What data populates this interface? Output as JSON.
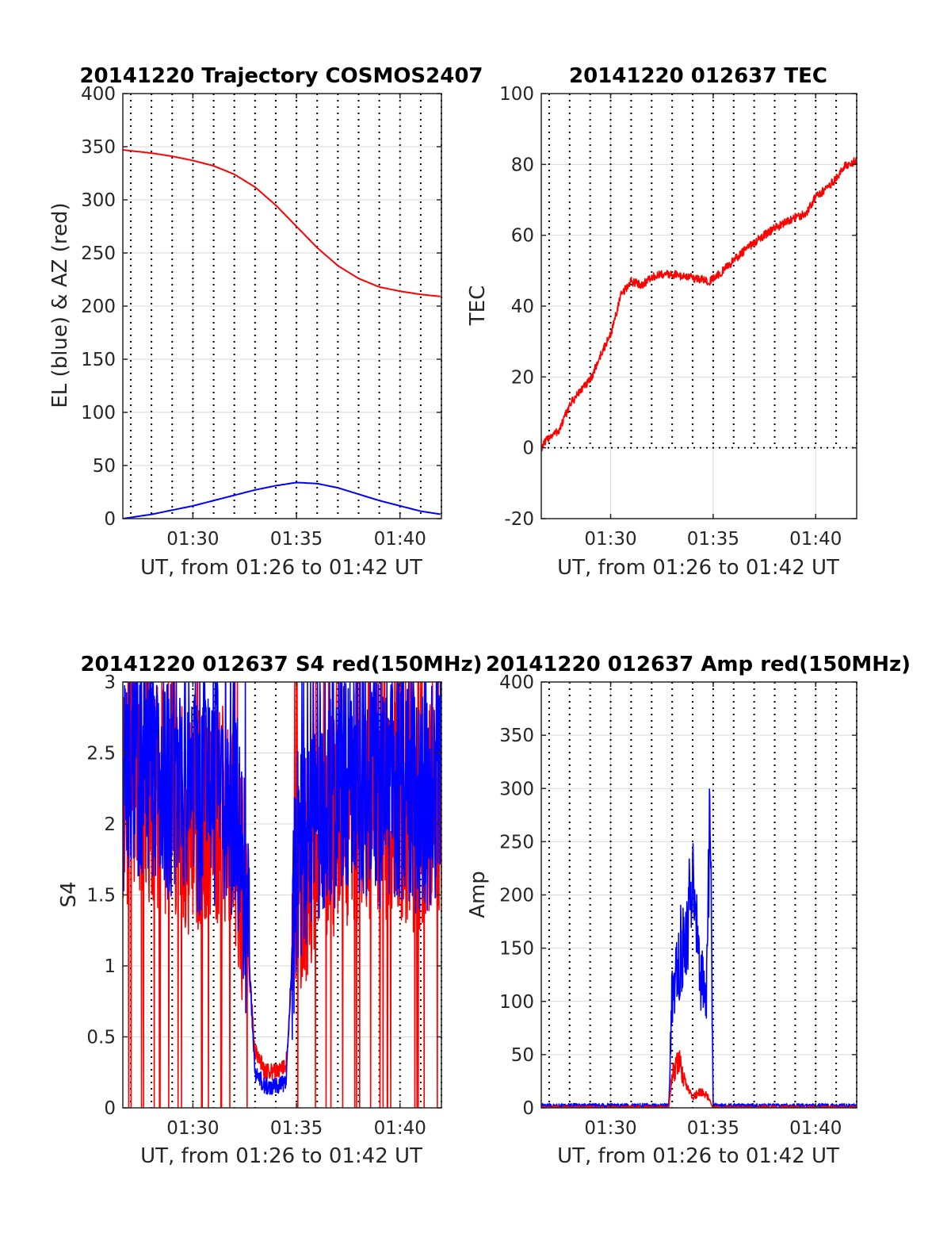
{
  "figure": {
    "background": "#ffffff"
  },
  "colors": {
    "red": "#ff0000",
    "blue": "#0000ff",
    "grid": "#d9d9d9",
    "dotted": "#000000",
    "axis": "#262626"
  },
  "chart_data": [
    {
      "type": "line",
      "title": "20141220 Trajectory COSMOS2407",
      "xlabel": "UT, from 01:26 to 01:42 UT",
      "ylabel": "EL (blue) & AZ (red)",
      "xlim": [
        "01:26:37",
        "01:42:00"
      ],
      "ylim": [
        0,
        400
      ],
      "yticks": [
        "0",
        "50",
        "100",
        "150",
        "200",
        "250",
        "300",
        "350",
        "400"
      ],
      "xticks": [
        "01:30",
        "01:35",
        "01:40"
      ],
      "grid": true,
      "dotted_minute_lines": true,
      "series": [
        {
          "color": "#ff0000",
          "x": [
            "01:26:37",
            "01:28",
            "01:29",
            "01:30",
            "01:31",
            "01:32",
            "01:33",
            "01:34",
            "01:35",
            "01:36",
            "01:37",
            "01:38",
            "01:39",
            "01:40",
            "01:41",
            "01:42"
          ],
          "y": [
            347,
            344,
            341,
            337,
            332,
            324,
            312,
            295,
            275,
            255,
            238,
            226,
            218,
            214,
            211,
            209
          ]
        },
        {
          "color": "#0000ff",
          "x": [
            "01:26:37",
            "01:28",
            "01:29",
            "01:30",
            "01:31",
            "01:32",
            "01:33",
            "01:34",
            "01:35",
            "01:36",
            "01:37",
            "01:38",
            "01:39",
            "01:40",
            "01:41",
            "01:42"
          ],
          "y": [
            0,
            4,
            8,
            12,
            17,
            22,
            27,
            31,
            34,
            33,
            29,
            23,
            17,
            12,
            7,
            4
          ]
        }
      ]
    },
    {
      "type": "line",
      "title": "20141220 012637 TEC",
      "xlabel": "UT, from 01:26 to 01:42 UT",
      "ylabel": "TEC",
      "xlim": [
        "01:26:37",
        "01:42:00"
      ],
      "ylim": [
        -20,
        100
      ],
      "yticks": [
        "-20",
        "0",
        "20",
        "40",
        "60",
        "80",
        "100"
      ],
      "xticks": [
        "01:30",
        "01:35",
        "01:40"
      ],
      "grid": true,
      "dotted_minute_lines": true,
      "dotted_above": 0,
      "series": [
        {
          "color": "#ff0000",
          "x": [
            "01:26:37",
            "01:27:00",
            "01:27:30",
            "01:28:00",
            "01:28:30",
            "01:29:00",
            "01:29:30",
            "01:30:00",
            "01:30:30",
            "01:31:00",
            "01:31:30",
            "01:32:00",
            "01:32:30",
            "01:33:00",
            "01:34:00",
            "01:34:50",
            "01:35:30",
            "01:36:00",
            "01:37:00",
            "01:38:00",
            "01:39:00",
            "01:39:30",
            "01:40:00",
            "01:40:30",
            "01:41:00",
            "01:41:30",
            "01:42:00"
          ],
          "y": [
            0,
            3,
            5,
            12,
            16,
            19,
            26,
            32,
            43,
            47,
            46,
            48,
            49,
            49,
            48,
            47,
            50,
            53,
            58,
            62,
            65,
            66,
            71,
            73,
            76,
            80,
            81
          ]
        }
      ]
    },
    {
      "type": "line",
      "title": "20141220 012637 S4 red(150MHz)",
      "xlabel": "UT, from 01:26 to 01:42 UT",
      "ylabel": "S4",
      "xlim": [
        "01:26:37",
        "01:42:00"
      ],
      "ylim": [
        0,
        3
      ],
      "yticks": [
        "0",
        "0.5",
        "1",
        "1.5",
        "2",
        "2.5",
        "3"
      ],
      "xticks": [
        "01:30",
        "01:35",
        "01:40"
      ],
      "grid": true,
      "dotted_minute_lines": true,
      "series": [
        {
          "color": "#ff0000",
          "x": [
            "01:26:37",
            "01:27:00",
            "01:28:00",
            "01:29:00",
            "01:30:00",
            "01:31:00",
            "01:32:00",
            "01:32:30",
            "01:33:00",
            "01:33:30",
            "01:34:00",
            "01:34:30",
            "01:35:00",
            "01:36:00",
            "01:37:00",
            "01:38:00",
            "01:39:00",
            "01:40:00",
            "01:41:00",
            "01:42:00"
          ],
          "y": [
            2.1,
            2.3,
            2.2,
            2.1,
            2.0,
            2.1,
            2.0,
            1.4,
            0.4,
            0.25,
            0.25,
            0.3,
            1.5,
            1.9,
            2.0,
            2.1,
            2.0,
            2.1,
            2.0,
            2.1
          ]
        },
        {
          "color": "#0000ff",
          "x": [
            "01:26:37",
            "01:27:00",
            "01:28:00",
            "01:29:00",
            "01:30:00",
            "01:31:00",
            "01:32:00",
            "01:32:30",
            "01:33:00",
            "01:33:30",
            "01:34:00",
            "01:34:30",
            "01:35:00",
            "01:36:00",
            "01:37:00",
            "01:38:00",
            "01:39:00",
            "01:40:00",
            "01:41:00",
            "01:42:00"
          ],
          "y": [
            2.3,
            2.5,
            2.3,
            2.2,
            2.1,
            2.2,
            2.1,
            1.6,
            0.25,
            0.15,
            0.15,
            0.18,
            1.7,
            2.1,
            2.2,
            2.3,
            2.2,
            2.2,
            2.1,
            2.3
          ]
        }
      ]
    },
    {
      "type": "line",
      "title": "20141220 012637 Amp red(150MHz)",
      "xlabel": "UT, from 01:26 to 01:42 UT",
      "ylabel": "Amp",
      "xlim": [
        "01:26:37",
        "01:42:00"
      ],
      "ylim": [
        0,
        400
      ],
      "yticks": [
        "0",
        "50",
        "100",
        "150",
        "200",
        "250",
        "300",
        "350",
        "400"
      ],
      "xticks": [
        "01:30",
        "01:35",
        "01:40"
      ],
      "grid": true,
      "dotted_minute_lines": true,
      "series": [
        {
          "color": "#0000ff",
          "x": [
            "01:26:37",
            "01:32:50",
            "01:33:00",
            "01:33:20",
            "01:33:40",
            "01:34:00",
            "01:34:20",
            "01:34:40",
            "01:34:50",
            "01:35:00",
            "01:35:30",
            "01:42:00"
          ],
          "y": [
            2,
            2,
            110,
            140,
            170,
            200,
            130,
            90,
            320,
            3,
            2,
            2
          ]
        },
        {
          "color": "#ff0000",
          "x": [
            "01:26:37",
            "01:32:50",
            "01:33:00",
            "01:33:20",
            "01:33:40",
            "01:34:00",
            "01:34:20",
            "01:34:40",
            "01:34:50",
            "01:35:00",
            "01:35:30",
            "01:42:00"
          ],
          "y": [
            0,
            0,
            30,
            45,
            20,
            10,
            15,
            12,
            8,
            0,
            0,
            0
          ]
        }
      ]
    }
  ]
}
